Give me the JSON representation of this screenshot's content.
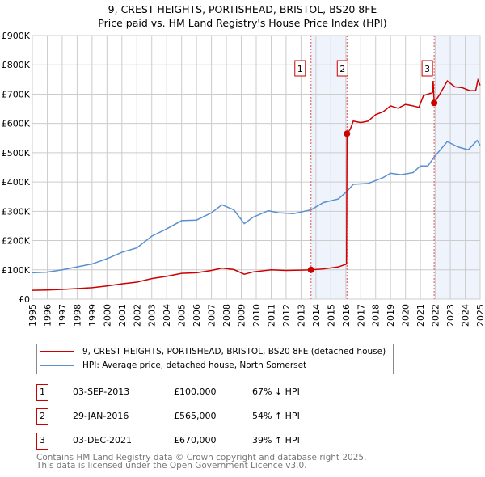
{
  "chart_data": {
    "type": "line",
    "title": "9, CREST HEIGHTS, PORTISHEAD, BRISTOL, BS20 8FE",
    "subtitle": "Price paid vs. HM Land Registry's House Price Index (HPI)",
    "xlim": [
      1995,
      2025
    ],
    "ylim": [
      0,
      900000
    ],
    "y_ticks": [
      {
        "v": 0,
        "label": "£0"
      },
      {
        "v": 100000,
        "label": "£100K"
      },
      {
        "v": 200000,
        "label": "£200K"
      },
      {
        "v": 300000,
        "label": "£300K"
      },
      {
        "v": 400000,
        "label": "£400K"
      },
      {
        "v": 500000,
        "label": "£500K"
      },
      {
        "v": 600000,
        "label": "£600K"
      },
      {
        "v": 700000,
        "label": "£700K"
      },
      {
        "v": 800000,
        "label": "£800K"
      },
      {
        "v": 900000,
        "label": "£900K"
      }
    ],
    "x_ticks": [
      "1995",
      "1996",
      "1997",
      "1998",
      "1999",
      "2000",
      "2001",
      "2002",
      "2003",
      "2004",
      "2005",
      "2006",
      "2007",
      "2008",
      "2009",
      "2010",
      "2011",
      "2012",
      "2013",
      "2014",
      "2015",
      "2016",
      "2017",
      "2018",
      "2019",
      "2020",
      "2021",
      "2022",
      "2023",
      "2024",
      "2025"
    ],
    "grid": true,
    "series": [
      {
        "name": "9, CREST HEIGHTS, PORTISHEAD, BRISTOL, BS20 8FE (detached house)",
        "color": "#cc0000",
        "x": [
          1995,
          1996,
          1997,
          1998,
          1999,
          2000,
          2001,
          2002,
          2003,
          2004,
          2005,
          2006,
          2007,
          2007.7,
          2008.5,
          2009.2,
          2009.8,
          2011,
          2012,
          2013.67,
          2014.5,
          2015.5,
          2016.05,
          2016.08,
          2016.3,
          2016.5,
          2017,
          2017.5,
          2018,
          2018.5,
          2019,
          2019.5,
          2020,
          2020.5,
          2020.9,
          2021.2,
          2021.5,
          2021.8,
          2021.85,
          2021.92,
          2022.3,
          2022.8,
          2023.3,
          2023.8,
          2024.3,
          2024.7,
          2024.85,
          2025
        ],
        "values": [
          30000,
          31000,
          33000,
          36000,
          39000,
          45000,
          52000,
          58000,
          70000,
          78000,
          88000,
          90000,
          98000,
          106000,
          101000,
          85000,
          93000,
          100000,
          98000,
          100000,
          103000,
          110000,
          120000,
          565000,
          580000,
          608000,
          603000,
          608000,
          630000,
          640000,
          660000,
          652000,
          665000,
          660000,
          655000,
          695000,
          700000,
          705000,
          745000,
          670000,
          700000,
          745000,
          725000,
          722000,
          712000,
          712000,
          748000,
          730000
        ]
      },
      {
        "name": "HPI: Average price, detached house, North Somerset",
        "color": "#5b8fd0",
        "x": [
          1995,
          1996,
          1997,
          1998,
          1999,
          2000,
          2001,
          2002,
          2003,
          2004,
          2005,
          2006,
          2007,
          2007.7,
          2008.5,
          2009.2,
          2009.8,
          2010.8,
          2011.5,
          2012.5,
          2013.67,
          2014.5,
          2015.5,
          2016.08,
          2016.5,
          2017.5,
          2018.5,
          2019,
          2019.7,
          2020.5,
          2021,
          2021.5,
          2021.92,
          2022.8,
          2023.5,
          2024.2,
          2024.8,
          2025
        ],
        "values": [
          90000,
          92000,
          100000,
          110000,
          120000,
          138000,
          160000,
          175000,
          215000,
          240000,
          268000,
          270000,
          295000,
          322000,
          305000,
          258000,
          280000,
          302000,
          295000,
          292000,
          305000,
          330000,
          342000,
          368000,
          392000,
          395000,
          415000,
          430000,
          425000,
          432000,
          455000,
          455000,
          485000,
          538000,
          520000,
          510000,
          542000,
          525000
        ]
      }
    ],
    "highlights": [
      {
        "from": 2013.67,
        "to": 2016.08
      },
      {
        "from": 2021.92,
        "to": 2025
      }
    ],
    "markers": [
      {
        "label": "1",
        "x": 2013.67,
        "y": 100000
      },
      {
        "label": "2",
        "x": 2016.08,
        "y": 565000
      },
      {
        "label": "3",
        "x": 2021.92,
        "y": 670000
      }
    ],
    "legend_position": "bottom"
  },
  "transactions": [
    {
      "num": "1",
      "date": "03-SEP-2013",
      "price": "£100,000",
      "hpi": "67% ↓ HPI"
    },
    {
      "num": "2",
      "date": "29-JAN-2016",
      "price": "£565,000",
      "hpi": "54% ↑ HPI"
    },
    {
      "num": "3",
      "date": "03-DEC-2021",
      "price": "£670,000",
      "hpi": "39% ↑ HPI"
    }
  ],
  "footer": {
    "line1": "Contains HM Land Registry data © Crown copyright and database right 2025.",
    "line2": "This data is licensed under the Open Government Licence v3.0."
  }
}
